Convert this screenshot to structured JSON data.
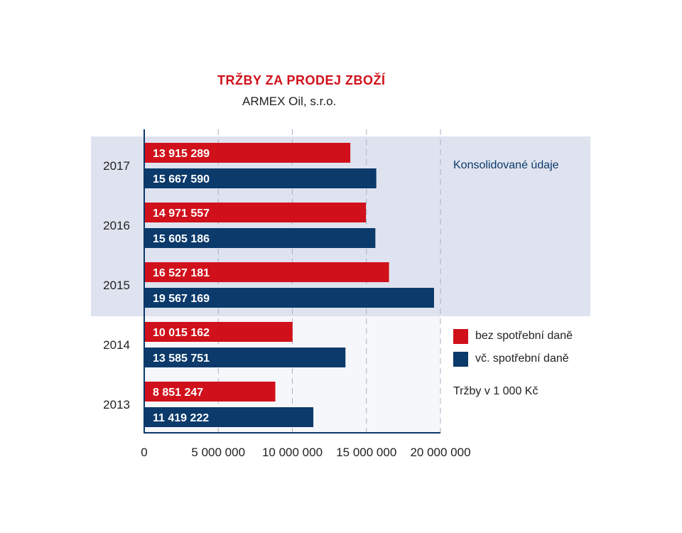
{
  "chart_data": {
    "type": "bar",
    "orientation": "horizontal",
    "title": "TRŽBY ZA PRODEJ ZBOŽÍ",
    "subtitle": "ARMEX Oil, s.r.o.",
    "categories": [
      "2017",
      "2016",
      "2015",
      "2014",
      "2013"
    ],
    "series": [
      {
        "name": "bez spotřební daně",
        "color": "#d0101b",
        "values": [
          13915289,
          14971557,
          16527181,
          10015162,
          8851247
        ],
        "labels": [
          "13 915 289",
          "14 971 557",
          "16 527 181",
          "10 015 162",
          "8 851 247"
        ]
      },
      {
        "name": "vč. spotřební daně",
        "color": "#0b3a6b",
        "values": [
          15667590,
          15605186,
          19567169,
          13585751,
          11419222
        ],
        "labels": [
          "15 667 590",
          "15 605 186",
          "19 567 169",
          "13 585 751",
          "11 419 222"
        ]
      }
    ],
    "xlim": [
      0,
      20000000
    ],
    "x_ticks": [
      0,
      5000000,
      10000000,
      15000000,
      20000000
    ],
    "x_tick_labels": [
      "0",
      "5 000 000",
      "10 000 000",
      "15 000 000",
      "20 000 000"
    ],
    "grid": "vertical dashed",
    "highlight": {
      "categories": [
        "2017",
        "2016",
        "2015"
      ],
      "label": "Konsolidované údaje",
      "color": "#dfe3ef"
    },
    "unit_note": "Tržby v 1 000 Kč",
    "legend_position": "right"
  }
}
